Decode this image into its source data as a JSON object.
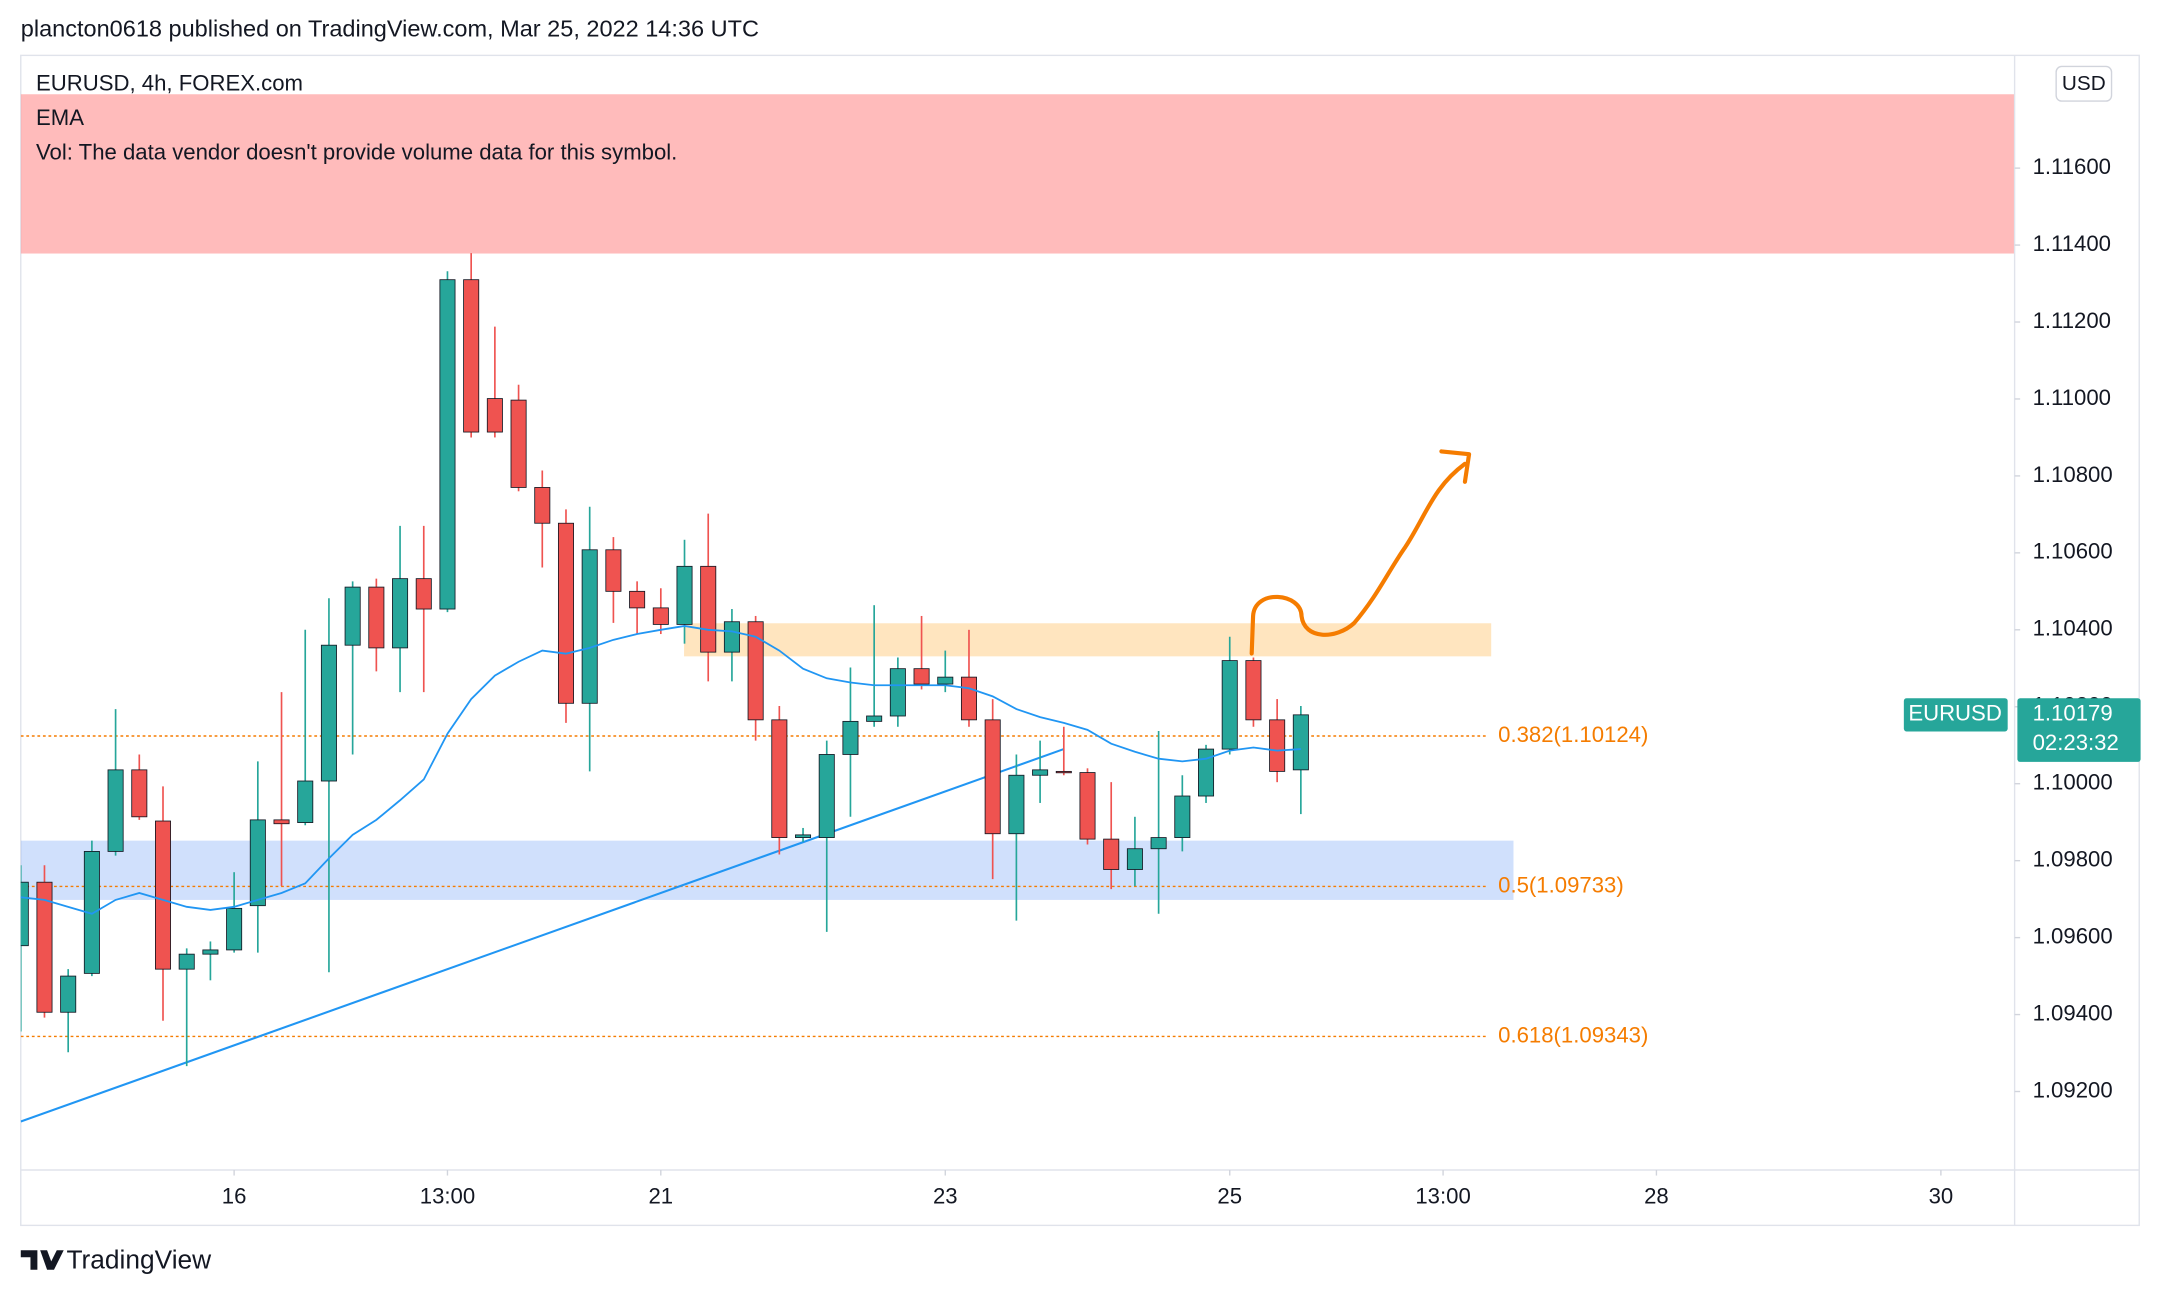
{
  "header": "plancton0618 published on TradingView.com, Mar 25, 2022 14:36 UTC",
  "footer": "TradingView",
  "currency": "USD",
  "chart_data": {
    "type": "candlestick",
    "title": "EURUSD, 4h, FOREX.com",
    "legend_lines": [
      "EMA",
      "Vol: The data vendor doesn't provide volume data for this symbol."
    ],
    "up_color": "#26a69a",
    "down_color": "#ef5350",
    "x": [
      0,
      1,
      2,
      3,
      4,
      5,
      6,
      7,
      8,
      9,
      10,
      11,
      12,
      13,
      14,
      15,
      16,
      17,
      18,
      19,
      20,
      21,
      22,
      23,
      24,
      25,
      26,
      27,
      28,
      29,
      30,
      31,
      32,
      33,
      34,
      35,
      36,
      37,
      38,
      39,
      40,
      41,
      42,
      43,
      44,
      45,
      46,
      47,
      48,
      49,
      50,
      51,
      52,
      53,
      54
    ],
    "open": [
      1.09579,
      1.09744,
      1.09406,
      1.09507,
      1.09824,
      1.10036,
      1.09903,
      1.09518,
      1.09557,
      1.09568,
      1.09683,
      1.09906,
      1.09899,
      1.10007,
      1.1036,
      1.10511,
      1.10353,
      1.10533,
      1.10454,
      1.1131,
      1.11001,
      1.10997,
      1.1077,
      1.10677,
      1.10209,
      1.10608,
      1.105,
      1.10457,
      1.10414,
      1.10565,
      1.10342,
      1.10421,
      1.10166,
      1.0986,
      1.0986,
      1.10076,
      1.10162,
      1.10176,
      1.10299,
      1.10259,
      1.10277,
      1.10166,
      1.0987,
      1.10022,
      1.10032,
      1.10029,
      1.09856,
      1.09777,
      1.09831,
      1.0986,
      1.09968,
      1.1009,
      1.1032,
      1.10166,
      1.10036
    ],
    "high": [
      1.09788,
      1.09788,
      1.09518,
      1.09852,
      1.10194,
      1.10076,
      1.09993,
      1.09572,
      1.0959,
      1.0977,
      1.10058,
      1.10238,
      1.104,
      1.10482,
      1.10526,
      1.10533,
      1.1067,
      1.1067,
      1.11332,
      1.11379,
      1.11188,
      1.11037,
      1.10814,
      1.10713,
      1.1072,
      1.10641,
      1.10526,
      1.10508,
      1.10634,
      1.10702,
      1.10454,
      1.10436,
      1.10202,
      1.09885,
      1.10112,
      1.10302,
      1.10464,
      1.10328,
      1.10436,
      1.10346,
      1.104,
      1.1022,
      1.10076,
      1.10112,
      1.10148,
      1.1004,
      1.10004,
      1.09914,
      1.10137,
      1.10022,
      1.10101,
      1.10382,
      1.10328,
      1.1022,
      1.10202
    ],
    "low": [
      1.09356,
      1.09392,
      1.09302,
      1.095,
      1.09813,
      1.09906,
      1.09384,
      1.09266,
      1.09489,
      1.09561,
      1.09561,
      1.09734,
      1.09892,
      1.0951,
      1.10076,
      1.10292,
      1.10238,
      1.10238,
      1.10446,
      1.109,
      1.109,
      1.1076,
      1.10562,
      1.10158,
      1.10032,
      1.10418,
      1.10389,
      1.10389,
      1.10364,
      1.10266,
      1.10266,
      1.10112,
      1.09816,
      1.09849,
      1.09615,
      1.09914,
      1.10148,
      1.10148,
      1.10245,
      1.10238,
      1.10148,
      1.09752,
      1.09644,
      1.0995,
      1.10022,
      1.09842,
      1.09726,
      1.09734,
      1.09662,
      1.09824,
      1.0995,
      1.10076,
      1.10148,
      1.10004,
      1.09921
    ],
    "close": [
      1.09744,
      1.09406,
      1.095,
      1.09824,
      1.10036,
      1.09914,
      1.09518,
      1.09557,
      1.09568,
      1.09676,
      1.09906,
      1.09896,
      1.10007,
      1.1036,
      1.10511,
      1.10353,
      1.10533,
      1.10454,
      1.1131,
      1.10914,
      1.10914,
      1.1077,
      1.10677,
      1.10209,
      1.10608,
      1.105,
      1.10457,
      1.10414,
      1.10565,
      1.10342,
      1.10421,
      1.10166,
      1.0986,
      1.09867,
      1.10076,
      1.10162,
      1.10176,
      1.10299,
      1.10259,
      1.10277,
      1.10166,
      1.0987,
      1.10022,
      1.10036,
      1.10029,
      1.09856,
      1.09777,
      1.09831,
      1.0986,
      1.09968,
      1.1009,
      1.1032,
      1.10166,
      1.10032,
      1.10179
    ],
    "ema": {
      "name": "EMA",
      "color": "#2196f3",
      "values": [
        1.09705,
        1.09698,
        1.0968,
        1.09662,
        1.09698,
        1.09716,
        1.09698,
        1.0968,
        1.09672,
        1.0968,
        1.09698,
        1.09716,
        1.09741,
        1.09806,
        1.09867,
        1.09906,
        1.09957,
        1.10011,
        1.1013,
        1.1022,
        1.10281,
        1.10317,
        1.10346,
        1.10338,
        1.10353,
        1.10374,
        1.10389,
        1.104,
        1.1041,
        1.104,
        1.10396,
        1.10382,
        1.10346,
        1.10299,
        1.10274,
        1.10263,
        1.10256,
        1.10256,
        1.10256,
        1.10256,
        1.10248,
        1.10227,
        1.10194,
        1.10173,
        1.10158,
        1.1014,
        1.10104,
        1.10083,
        1.10065,
        1.10058,
        1.10065,
        1.10086,
        1.10094,
        1.10086,
        1.1009
      ]
    },
    "trendline": {
      "color": "#2196f3",
      "x": [
        0,
        44
      ],
      "y": [
        1.09122,
        1.1009
      ]
    },
    "zones": [
      {
        "xlim": [
          0,
          84.11
        ],
        "ylim": [
          1.11378,
          1.11792
        ],
        "color": "rgba(255,150,150,0.65)"
      },
      {
        "xlim": [
          27.98,
          62.03
        ],
        "ylim": [
          1.10331,
          1.10417
        ],
        "color": "rgba(255,152,0,0.25)"
      },
      {
        "xlim": [
          0,
          62.97
        ],
        "ylim": [
          1.09698,
          1.09852
        ],
        "color": "rgba(66,133,244,0.25)"
      }
    ],
    "fib_levels": [
      {
        "value": 1.10124,
        "label": "0.382(1.10124)"
      },
      {
        "value": 1.09733,
        "label": "0.5(1.09733)"
      },
      {
        "value": 1.09343,
        "label": "0.618(1.09343)"
      }
    ],
    "fib_color": "#f57c00",
    "last_price": {
      "symbol": "EURUSD",
      "value": 1.10179,
      "countdown": "02:23:32"
    },
    "xlim": [
      0,
      84.11
    ],
    "ylim": [
      1.08996,
      1.11893
    ],
    "xticks": [
      {
        "value": 9,
        "label": "16"
      },
      {
        "value": 18,
        "label": "13:00"
      },
      {
        "value": 27,
        "label": "21"
      },
      {
        "value": 39,
        "label": "23"
      },
      {
        "value": 51,
        "label": "25"
      },
      {
        "value": 60,
        "label": "13:00"
      },
      {
        "value": 69,
        "label": "28"
      },
      {
        "value": 81,
        "label": "30"
      }
    ],
    "yticks": [
      {
        "value": 1.092,
        "label": "1.09200"
      },
      {
        "value": 1.094,
        "label": "1.09400"
      },
      {
        "value": 1.096,
        "label": "1.09600"
      },
      {
        "value": 1.098,
        "label": "1.09800"
      },
      {
        "value": 1.1,
        "label": "1.10000"
      },
      {
        "value": 1.102,
        "label": "1.10200"
      },
      {
        "value": 1.104,
        "label": "1.10400"
      },
      {
        "value": 1.106,
        "label": "1.10600"
      },
      {
        "value": 1.108,
        "label": "1.10800"
      },
      {
        "value": 1.11,
        "label": "1.11000"
      },
      {
        "value": 1.112,
        "label": "1.11200"
      },
      {
        "value": 1.114,
        "label": "1.11400"
      },
      {
        "value": 1.116,
        "label": "1.11600"
      }
    ],
    "grid": false
  }
}
